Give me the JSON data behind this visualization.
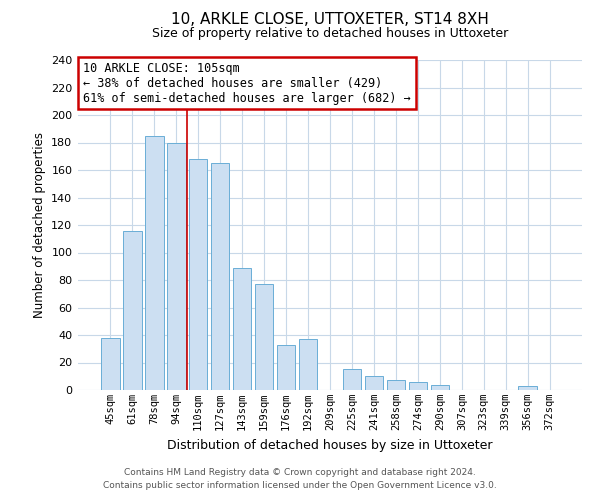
{
  "title": "10, ARKLE CLOSE, UTTOXETER, ST14 8XH",
  "subtitle": "Size of property relative to detached houses in Uttoxeter",
  "xlabel": "Distribution of detached houses by size in Uttoxeter",
  "ylabel": "Number of detached properties",
  "categories": [
    "45sqm",
    "61sqm",
    "78sqm",
    "94sqm",
    "110sqm",
    "127sqm",
    "143sqm",
    "159sqm",
    "176sqm",
    "192sqm",
    "209sqm",
    "225sqm",
    "241sqm",
    "258sqm",
    "274sqm",
    "290sqm",
    "307sqm",
    "323sqm",
    "339sqm",
    "356sqm",
    "372sqm"
  ],
  "values": [
    38,
    116,
    185,
    180,
    168,
    165,
    89,
    77,
    33,
    37,
    0,
    15,
    10,
    7,
    6,
    4,
    0,
    0,
    0,
    3,
    0
  ],
  "bar_color": "#ccdff2",
  "bar_edge_color": "#6aaed6",
  "background_color": "#ffffff",
  "grid_color": "#c8d8e8",
  "property_line_x": 3.5,
  "annotation_title": "10 ARKLE CLOSE: 105sqm",
  "annotation_line1": "← 38% of detached houses are smaller (429)",
  "annotation_line2": "61% of semi-detached houses are larger (682) →",
  "annotation_box_color": "#ffffff",
  "annotation_box_edge_color": "#cc0000",
  "property_line_color": "#cc0000",
  "ylim": [
    0,
    240
  ],
  "yticks": [
    0,
    20,
    40,
    60,
    80,
    100,
    120,
    140,
    160,
    180,
    200,
    220,
    240
  ],
  "footer_line1": "Contains HM Land Registry data © Crown copyright and database right 2024.",
  "footer_line2": "Contains public sector information licensed under the Open Government Licence v3.0."
}
